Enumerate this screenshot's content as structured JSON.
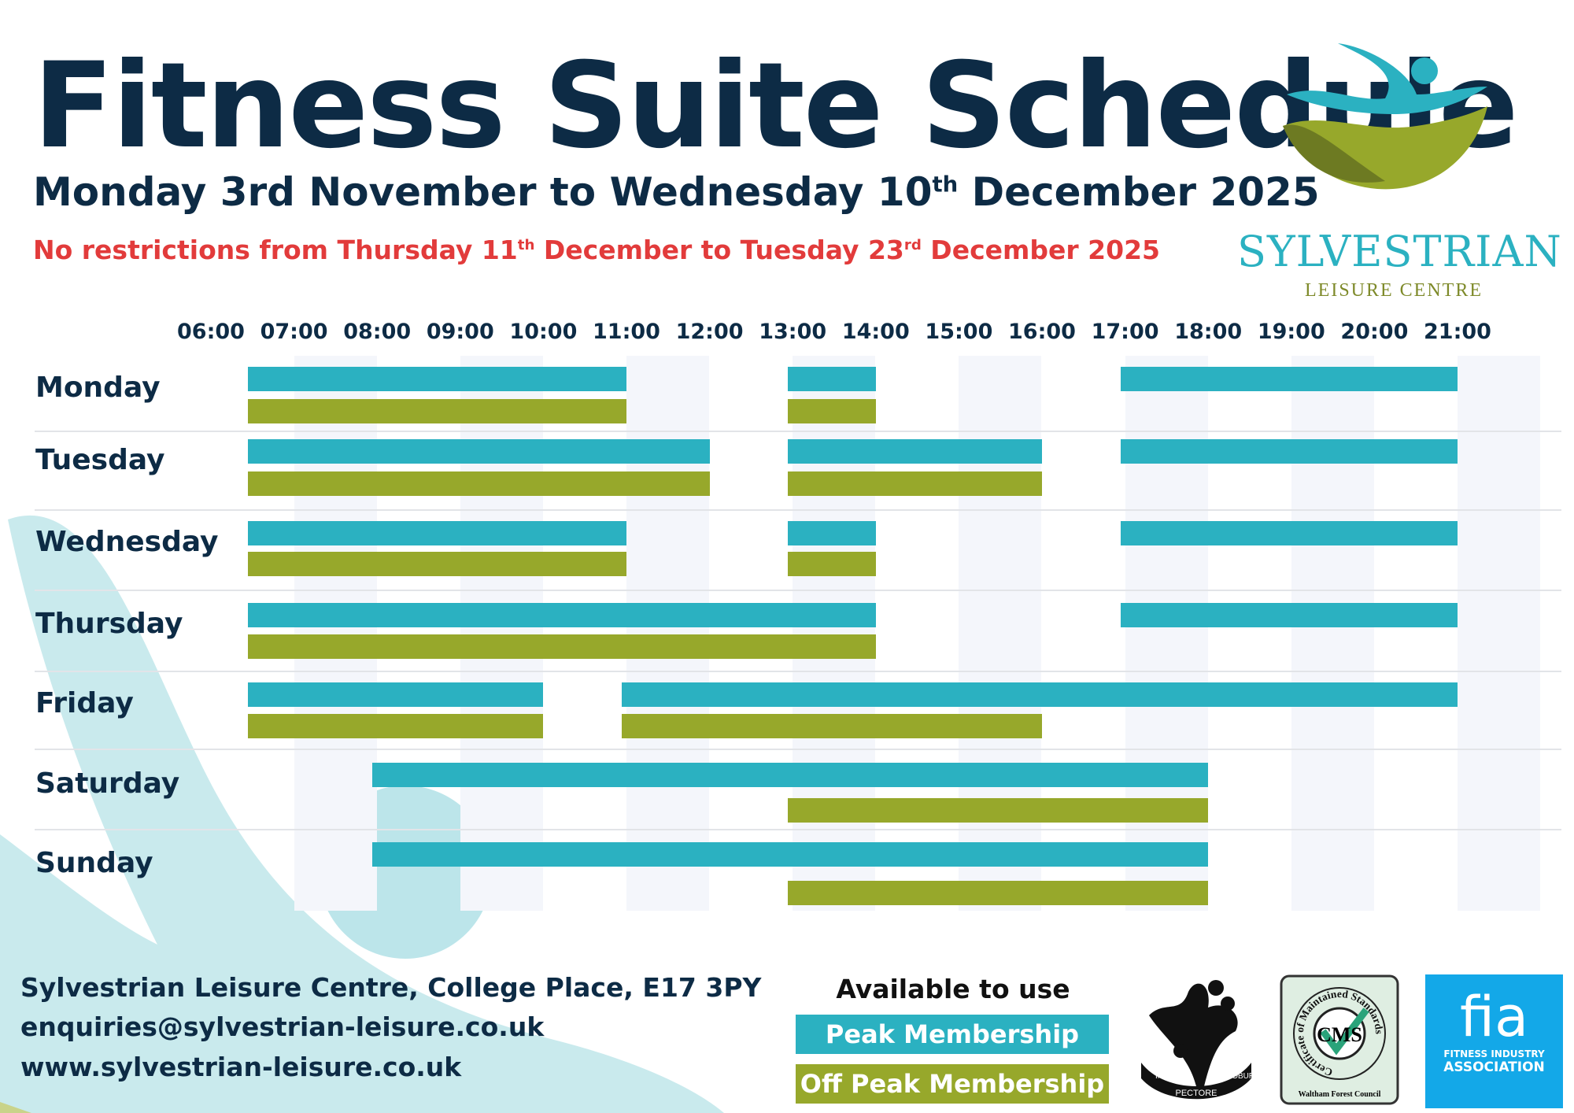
{
  "title": "Fitness Suite Schedule",
  "subtitle": {
    "pre": "Monday 3rd November to Wednesday 10",
    "sup": "th",
    "post": " December 2025"
  },
  "notice": {
    "a": "No restrictions from Thursday 11",
    "a_sup": "th",
    "b": " December to Tuesday 23",
    "b_sup": "rd",
    "c": " December 2025"
  },
  "brand": {
    "name": "SYLVESTRIAN",
    "tagline": "LEISURE CENTRE"
  },
  "colors": {
    "peak": "#2bb1c1",
    "off_peak": "#97a82b",
    "navy": "#0d2b45",
    "notice": "#e23b3b"
  },
  "chart_data": {
    "type": "gantt",
    "time_labels": [
      "06:00",
      "07:00",
      "08:00",
      "09:00",
      "10:00",
      "11:00",
      "12:00",
      "13:00",
      "14:00",
      "15:00",
      "16:00",
      "17:00",
      "18:00",
      "19:00",
      "20:00",
      "21:00"
    ],
    "series": [
      {
        "name": "Peak Membership",
        "key": "peak"
      },
      {
        "name": "Off Peak Membership",
        "key": "off"
      }
    ],
    "days": [
      {
        "day": "Monday",
        "peak": [
          [
            6.5,
            11
          ],
          [
            13,
            14
          ],
          [
            17,
            21
          ]
        ],
        "off": [
          [
            6.5,
            11
          ],
          [
            13,
            14
          ]
        ]
      },
      {
        "day": "Tuesday",
        "peak": [
          [
            6.5,
            12
          ],
          [
            13,
            16
          ],
          [
            17,
            21
          ]
        ],
        "off": [
          [
            6.5,
            12
          ],
          [
            13,
            16
          ]
        ]
      },
      {
        "day": "Wednesday",
        "peak": [
          [
            6.5,
            11
          ],
          [
            13,
            14
          ],
          [
            17,
            21
          ]
        ],
        "off": [
          [
            6.5,
            11
          ],
          [
            13,
            14
          ]
        ]
      },
      {
        "day": "Thursday",
        "peak": [
          [
            6.5,
            14
          ],
          [
            17,
            21
          ]
        ],
        "off": [
          [
            6.5,
            14
          ]
        ]
      },
      {
        "day": "Friday",
        "peak": [
          [
            6.5,
            10
          ],
          [
            11,
            21
          ]
        ],
        "off": [
          [
            6.5,
            10
          ],
          [
            11,
            16
          ]
        ]
      },
      {
        "day": "Saturday",
        "peak": [
          [
            8,
            18
          ]
        ],
        "off": [
          [
            13,
            18
          ]
        ]
      },
      {
        "day": "Sunday",
        "peak": [
          [
            8,
            18
          ]
        ],
        "off": [
          [
            13,
            18
          ]
        ]
      }
    ]
  },
  "footer": {
    "address": "Sylvestrian Leisure Centre, College Place, E17 3PY",
    "email": "enquiries@sylvestrian-leisure.co.uk",
    "website": "www.sylvestrian-leisure.co.uk"
  },
  "legend": {
    "title": "Available to use",
    "peak": "Peak Membership",
    "off": "Off Peak Membership"
  },
  "badges": {
    "crest": {
      "motto_left": "IN",
      "motto_mid": "PECTORE",
      "motto_right": "ROBUR"
    },
    "cms": {
      "ring": "Certificate of Maintained Standards",
      "center": "CMS",
      "footer": "Waltham Forest Council"
    },
    "fia": {
      "logo": "fia",
      "line1": "FITNESS INDUSTRY",
      "line2": "ASSOCIATION"
    }
  }
}
